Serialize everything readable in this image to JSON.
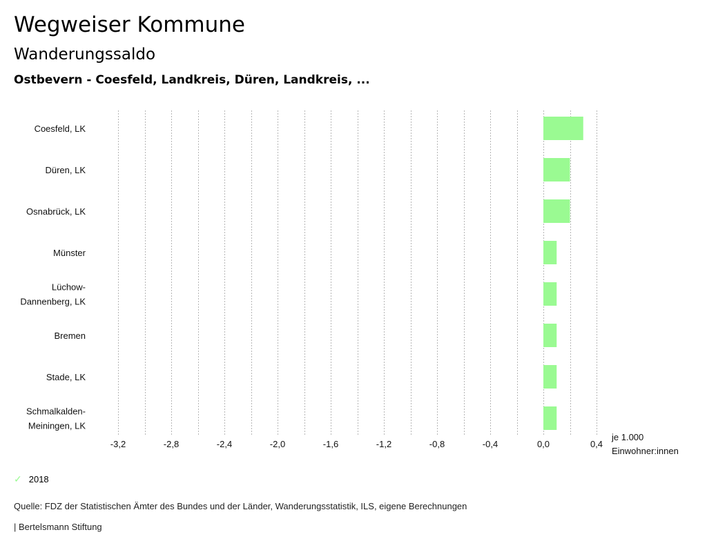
{
  "header": {
    "title": "Wegweiser Kommune",
    "subtitle": "Wanderungssaldo",
    "region": "Ostbevern - Coesfeld, Landkreis, Düren, Landkreis, ..."
  },
  "chart_data": {
    "type": "bar",
    "orientation": "horizontal",
    "categories": [
      [
        "Coesfeld, LK"
      ],
      [
        "Düren, LK"
      ],
      [
        "Osnabrück, LK"
      ],
      [
        "Münster"
      ],
      [
        "Lüchow-",
        "Dannenberg, LK"
      ],
      [
        "Bremen"
      ],
      [
        "Stade, LK"
      ],
      [
        "Schmalkalden-",
        "Meiningen, LK"
      ]
    ],
    "series": [
      {
        "name": "2018",
        "values": [
          0.3,
          0.2,
          0.2,
          0.1,
          0.1,
          0.1,
          0.1,
          0.1
        ],
        "color": "#9afa92"
      }
    ],
    "xlim": [
      -3.2,
      0.4
    ],
    "xticks": [
      -3.2,
      -2.8,
      -2.4,
      -2.0,
      -1.6,
      -1.2,
      -0.8,
      -0.4,
      0.0,
      0.4
    ],
    "xtick_labels": [
      "-3,2",
      "-2,8",
      "-2,4",
      "-2,0",
      "-1,6",
      "-1,2",
      "-0,8",
      "-0,4",
      "0,0",
      "0,4"
    ],
    "grid_step": 0.2,
    "xlabel": [
      "je 1.000",
      "Einwohner:innen"
    ],
    "grid": true,
    "legend": "bottom-left"
  },
  "footer": {
    "source": "Quelle: FDZ der Statistischen Ämter des Bundes und der Länder, Wanderungsstatistik, ILS, eigene Berechnungen",
    "brand": "| Bertelsmann Stiftung"
  }
}
